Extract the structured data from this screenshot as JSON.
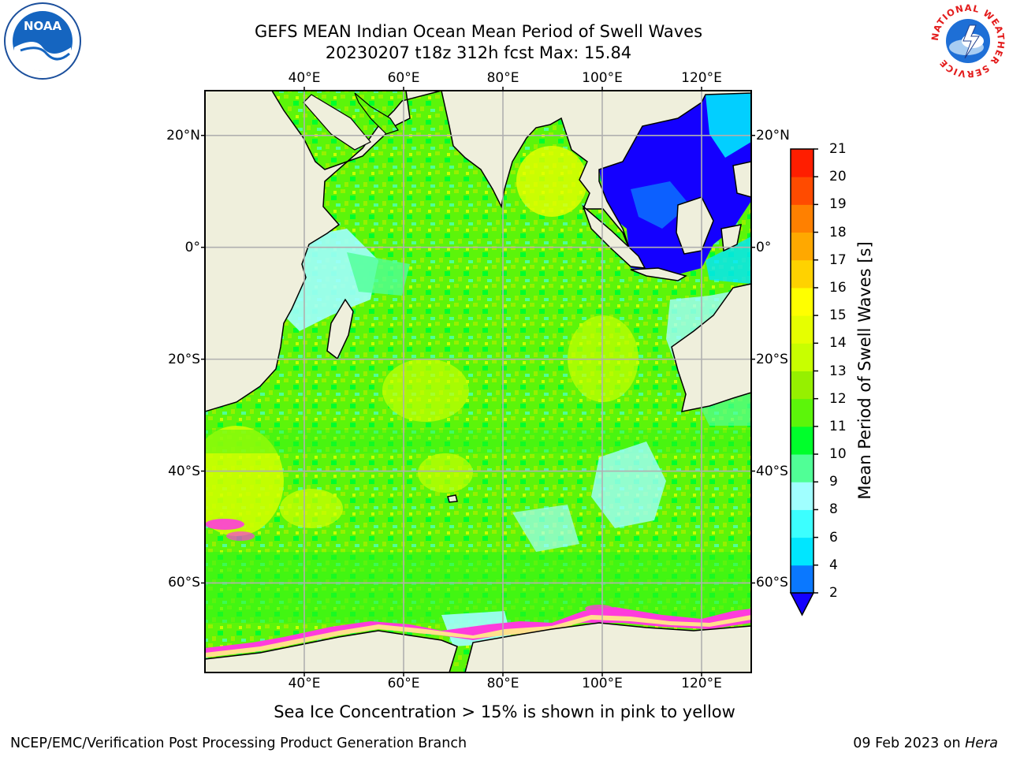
{
  "title_line1": "GEFS MEAN Indian Ocean Mean Period of Swell Waves",
  "title_line2": "20230207 t18z 312h fcst   Max: 15.84",
  "logos": {
    "left": "noaa-logo",
    "right": "nws-logo",
    "noaa_text": "NOAA",
    "nws_ring_text": "NATIONAL WEATHER SERVICE"
  },
  "map": {
    "lon_range": [
      20,
      130
    ],
    "lat_range": [
      -76,
      28
    ],
    "lon_ticks": [
      {
        "value": 40,
        "label": "40°E"
      },
      {
        "value": 60,
        "label": "60°E"
      },
      {
        "value": 80,
        "label": "80°E"
      },
      {
        "value": 100,
        "label": "100°E"
      },
      {
        "value": 120,
        "label": "120°E"
      }
    ],
    "lat_ticks": [
      {
        "value": 20,
        "label": "20°N"
      },
      {
        "value": 0,
        "label": "0°"
      },
      {
        "value": -20,
        "label": "20°S"
      },
      {
        "value": -40,
        "label": "40°S"
      },
      {
        "value": -60,
        "label": "60°S"
      }
    ],
    "land_color": "#efefdc",
    "gridlines": true
  },
  "colorbar": {
    "label": "Mean Period of Swell Waves [s]",
    "ticks": [
      "2",
      "4",
      "6",
      "8",
      "9",
      "10",
      "11",
      "12",
      "13",
      "14",
      "15",
      "16",
      "17",
      "18",
      "19",
      "20",
      "21"
    ],
    "colors": [
      "#0a78ff",
      "#00e6ff",
      "#3cffff",
      "#a0ffff",
      "#50ff96",
      "#00ff2b",
      "#5cf50a",
      "#96f000",
      "#c8ff00",
      "#e6ff00",
      "#ffff00",
      "#ffd200",
      "#ffa800",
      "#ff8000",
      "#ff4b00",
      "#ff1e00"
    ],
    "under_color": "#1400ff"
  },
  "subcaption": "Sea Ice Concentration > 15% is shown in pink to yellow",
  "footer": {
    "left": "NCEP/EMC/Verification Post Processing Product Generation Branch",
    "right_prefix": "09 Feb 2023 on ",
    "right_host": "Hera"
  }
}
